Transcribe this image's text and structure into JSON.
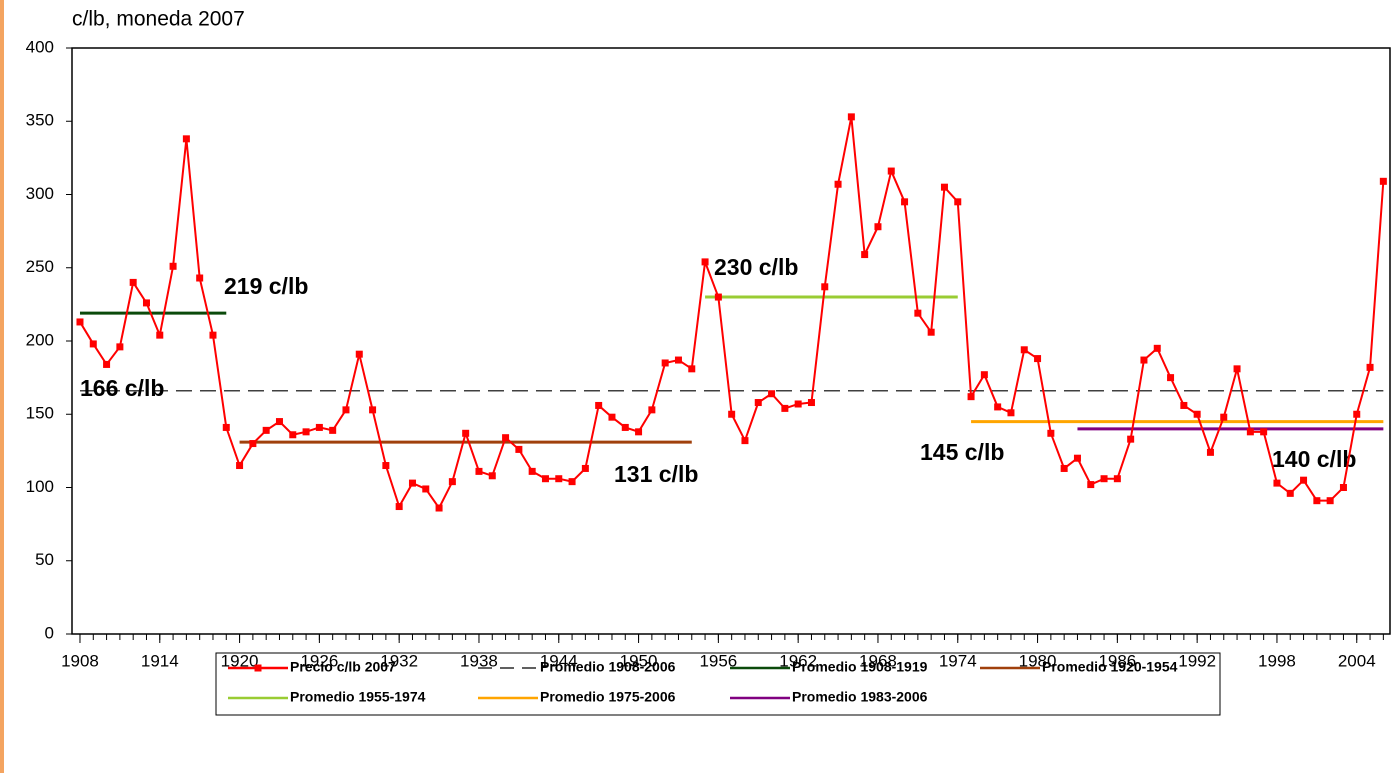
{
  "chart_data": {
    "type": "line",
    "y_label": "c/lb, moneda 2007",
    "x": [
      1908,
      1909,
      1910,
      1911,
      1912,
      1913,
      1914,
      1915,
      1916,
      1917,
      1918,
      1919,
      1920,
      1921,
      1922,
      1923,
      1924,
      1925,
      1926,
      1927,
      1928,
      1929,
      1930,
      1931,
      1932,
      1933,
      1934,
      1935,
      1936,
      1937,
      1938,
      1939,
      1940,
      1941,
      1942,
      1943,
      1944,
      1945,
      1946,
      1947,
      1948,
      1949,
      1950,
      1951,
      1952,
      1953,
      1954,
      1955,
      1956,
      1957,
      1958,
      1959,
      1960,
      1961,
      1962,
      1963,
      1964,
      1965,
      1966,
      1967,
      1968,
      1969,
      1970,
      1971,
      1972,
      1973,
      1974,
      1975,
      1976,
      1977,
      1978,
      1979,
      1980,
      1981,
      1982,
      1983,
      1984,
      1985,
      1986,
      1987,
      1988,
      1989,
      1990,
      1991,
      1992,
      1993,
      1994,
      1995,
      1996,
      1997,
      1998,
      1999,
      2000,
      2001,
      2002,
      2003,
      2004,
      2005,
      2006
    ],
    "series": [
      {
        "name": "Precio c/lb 2007",
        "color": "#ff0000",
        "values": [
          213,
          198,
          184,
          196,
          240,
          226,
          204,
          251,
          338,
          243,
          204,
          141,
          115,
          130,
          139,
          145,
          136,
          138,
          141,
          139,
          153,
          191,
          153,
          115,
          87,
          103,
          99,
          86,
          104,
          137,
          111,
          108,
          134,
          126,
          111,
          106,
          106,
          104,
          113,
          156,
          148,
          141,
          138,
          153,
          185,
          187,
          181,
          254,
          230,
          150,
          132,
          158,
          164,
          154,
          157,
          158,
          237,
          307,
          353,
          259,
          278,
          316,
          295,
          219,
          206,
          305,
          295,
          162,
          177,
          155,
          151,
          194,
          188,
          137,
          113,
          120,
          102,
          106,
          106,
          133,
          187,
          195,
          175,
          156,
          150,
          124,
          148,
          181,
          138,
          138,
          103,
          96,
          105,
          91,
          91,
          100,
          150,
          182,
          309
        ]
      }
    ],
    "averages": [
      {
        "name": "Promedio 1908-2006",
        "color": "#000000",
        "dashed": true,
        "x": [
          1908,
          2006
        ],
        "value": 166,
        "value_label": "166 c/lb"
      },
      {
        "name": "Promedio 1908-1919",
        "color": "#0b4a0b",
        "dashed": false,
        "x": [
          1908,
          1919
        ],
        "value": 219,
        "value_label": "219 c/lb"
      },
      {
        "name": "Promedio 1920-1954",
        "color": "#a0400c",
        "dashed": false,
        "x": [
          1920,
          1954
        ],
        "value": 131,
        "value_label": "131 c/lb"
      },
      {
        "name": "Promedio 1955-1974",
        "color": "#99cc33",
        "dashed": false,
        "x": [
          1955,
          1974
        ],
        "value": 230,
        "value_label": "230 c/lb"
      },
      {
        "name": "Promedio 1975-2006",
        "color": "#ffa500",
        "dashed": false,
        "x": [
          1975,
          2006
        ],
        "value": 145,
        "value_label": "145 c/lb"
      },
      {
        "name": "Promedio 1983-2006",
        "color": "#800080",
        "dashed": false,
        "x": [
          1983,
          2006
        ],
        "value": 140,
        "value_label": "140 c/lb"
      }
    ],
    "xlim": [
      1907.4,
      2006.5
    ],
    "ylim": [
      0,
      400
    ],
    "xticks": [
      1908,
      1914,
      1920,
      1926,
      1932,
      1938,
      1944,
      1950,
      1956,
      1962,
      1968,
      1974,
      1980,
      1986,
      1992,
      1998,
      2004
    ],
    "yticks": [
      0,
      50,
      100,
      150,
      200,
      250,
      300,
      350,
      400
    ]
  }
}
